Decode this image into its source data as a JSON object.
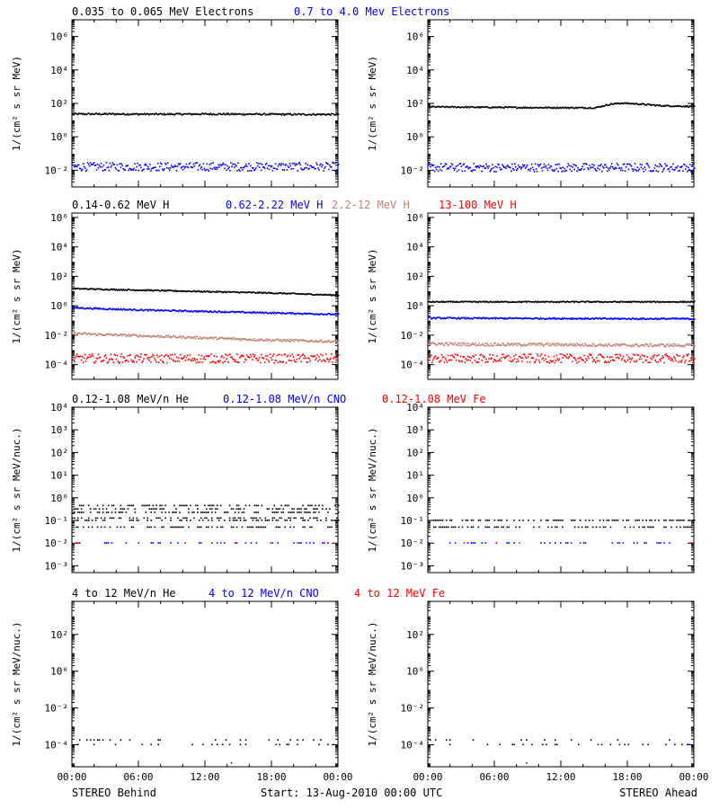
{
  "figure": {
    "footer_left": "STEREO Behind",
    "footer_center": "Start: 13-Aug-2010 00:00 UTC",
    "footer_right": "STEREO Ahead",
    "x_ticks": [
      "00:00",
      "06:00",
      "12:00",
      "18:00",
      "00:00"
    ]
  },
  "colors": {
    "black": "#000000",
    "blue": "#0000ff",
    "brown": "#c08070",
    "red": "#ff0000"
  },
  "chart_data": [
    {
      "type": "scatter",
      "panel": "electrons-behind",
      "row": 0,
      "col": 0,
      "title_items": [
        {
          "text": "0.035 to 0.065 MeV Electrons",
          "color": "#000000"
        },
        {
          "text": "0.7 to 4.0 Mev Electrons",
          "color": "#0000ff"
        }
      ],
      "ylabel": "1/(cm² s sr MeV)",
      "log_ymin": -3,
      "log_ymax": 7,
      "yticks": [
        {
          "exp": -2,
          "label": "10⁻²"
        },
        {
          "exp": 0,
          "label": "10⁰"
        },
        {
          "exp": 2,
          "label": "10²"
        },
        {
          "exp": 4,
          "label": "10⁴"
        },
        {
          "exp": 6,
          "label": "10⁶"
        }
      ],
      "xlim_hours": [
        0,
        24
      ],
      "series": [
        {
          "color": "#000000",
          "x": [
            0,
            4,
            8,
            12,
            16,
            20,
            24
          ],
          "log10_y": [
            1.35,
            1.35,
            1.34,
            1.35,
            1.34,
            1.33,
            1.33
          ],
          "scatter": 0.05
        },
        {
          "color": "#0000ff",
          "x": [
            0,
            4,
            8,
            12,
            16,
            20,
            24
          ],
          "log10_y": [
            -1.8,
            -1.8,
            -1.8,
            -1.8,
            -1.8,
            -1.8,
            -1.8
          ],
          "scatter": 0.25
        }
      ]
    },
    {
      "type": "scatter",
      "panel": "electrons-ahead",
      "row": 0,
      "col": 1,
      "title_items": [],
      "ylabel": "1/(cm² s sr MeV)",
      "log_ymin": -3,
      "log_ymax": 7,
      "yticks": [
        {
          "exp": -2,
          "label": "10⁻²"
        },
        {
          "exp": 0,
          "label": "10⁰"
        },
        {
          "exp": 2,
          "label": "10²"
        },
        {
          "exp": 4,
          "label": "10⁴"
        },
        {
          "exp": 6,
          "label": "10⁶"
        }
      ],
      "xlim_hours": [
        0,
        24
      ],
      "series": [
        {
          "color": "#000000",
          "x": [
            0,
            4,
            8,
            12,
            15,
            16.5,
            17.5,
            19,
            21,
            24
          ],
          "log10_y": [
            1.78,
            1.76,
            1.74,
            1.73,
            1.72,
            1.95,
            2.0,
            1.95,
            1.85,
            1.8
          ],
          "scatter": 0.04
        },
        {
          "color": "#0000ff",
          "x": [
            0,
            4,
            8,
            12,
            16,
            20,
            24
          ],
          "log10_y": [
            -1.85,
            -1.85,
            -1.85,
            -1.85,
            -1.85,
            -1.85,
            -1.85
          ],
          "scatter": 0.25
        }
      ]
    },
    {
      "type": "scatter",
      "panel": "protons-behind",
      "row": 1,
      "col": 0,
      "title_items": [
        {
          "text": "0.14-0.62 MeV H",
          "color": "#000000"
        },
        {
          "text": "0.62-2.22 MeV H",
          "color": "#0000ff"
        },
        {
          "text": "2.2-12 MeV H",
          "color": "#c08070"
        },
        {
          "text": "13-100 MeV H",
          "color": "#ff0000"
        }
      ],
      "ylabel": "1/(cm² s sr MeV)",
      "log_ymin": -5,
      "log_ymax": 6.3,
      "yticks": [
        {
          "exp": -4,
          "label": "10⁻⁴"
        },
        {
          "exp": -2,
          "label": "10⁻²"
        },
        {
          "exp": 0,
          "label": "10⁰"
        },
        {
          "exp": 2,
          "label": "10²"
        },
        {
          "exp": 4,
          "label": "10⁴"
        },
        {
          "exp": 6,
          "label": "10⁶"
        }
      ],
      "xlim_hours": [
        0,
        24
      ],
      "series": [
        {
          "color": "#000000",
          "x": [
            0,
            6,
            12,
            18,
            24
          ],
          "log10_y": [
            1.15,
            1.05,
            0.95,
            0.85,
            0.7
          ],
          "scatter": 0.04
        },
        {
          "color": "#0000ff",
          "x": [
            0,
            6,
            12,
            18,
            24
          ],
          "log10_y": [
            -0.15,
            -0.3,
            -0.4,
            -0.5,
            -0.6
          ],
          "scatter": 0.05
        },
        {
          "color": "#c08070",
          "x": [
            0,
            6,
            12,
            18,
            24
          ],
          "log10_y": [
            -1.9,
            -2.05,
            -2.2,
            -2.35,
            -2.45
          ],
          "scatter": 0.08
        },
        {
          "color": "#ff0000",
          "x": [
            0,
            6,
            12,
            18,
            24
          ],
          "log10_y": [
            -3.6,
            -3.6,
            -3.6,
            -3.6,
            -3.6
          ],
          "scatter": 0.3
        }
      ]
    },
    {
      "type": "scatter",
      "panel": "protons-ahead",
      "row": 1,
      "col": 1,
      "title_items": [],
      "ylabel": "1/(cm² s sr MeV)",
      "log_ymin": -5,
      "log_ymax": 6.3,
      "yticks": [
        {
          "exp": -4,
          "label": "10⁻⁴"
        },
        {
          "exp": -2,
          "label": "10⁻²"
        },
        {
          "exp": 0,
          "label": "10⁰"
        },
        {
          "exp": 2,
          "label": "10²"
        },
        {
          "exp": 4,
          "label": "10⁴"
        },
        {
          "exp": 6,
          "label": "10⁶"
        }
      ],
      "xlim_hours": [
        0,
        24
      ],
      "series": [
        {
          "color": "#000000",
          "x": [
            0,
            6,
            12,
            18,
            24
          ],
          "log10_y": [
            0.25,
            0.25,
            0.25,
            0.25,
            0.25
          ],
          "scatter": 0.04
        },
        {
          "color": "#0000ff",
          "x": [
            0,
            6,
            12,
            18,
            24
          ],
          "log10_y": [
            -0.85,
            -0.87,
            -0.88,
            -0.9,
            -0.9
          ],
          "scatter": 0.05
        },
        {
          "color": "#c08070",
          "x": [
            0,
            6,
            12,
            18,
            24
          ],
          "log10_y": [
            -2.6,
            -2.65,
            -2.65,
            -2.7,
            -2.7
          ],
          "scatter": 0.1
        },
        {
          "color": "#ff0000",
          "x": [
            0,
            6,
            12,
            18,
            24
          ],
          "log10_y": [
            -3.6,
            -3.6,
            -3.6,
            -3.6,
            -3.6
          ],
          "scatter": 0.3
        }
      ]
    },
    {
      "type": "scatter",
      "panel": "heavy-low-behind",
      "row": 2,
      "col": 0,
      "title_items": [
        {
          "text": "0.12-1.08 MeV/n He",
          "color": "#000000"
        },
        {
          "text": "0.12-1.08 MeV/n CNO",
          "color": "#0000ff"
        },
        {
          "text": "0.12-1.08 MeV Fe",
          "color": "#ff0000"
        }
      ],
      "ylabel": "1/(cm² s sr MeV/nuc.)",
      "log_ymin": -3.3,
      "log_ymax": 4,
      "yticks": [
        {
          "exp": -3,
          "label": "10⁻³"
        },
        {
          "exp": -2,
          "label": "10⁻²"
        },
        {
          "exp": -1,
          "label": "10⁻¹"
        },
        {
          "exp": 0,
          "label": "10⁰"
        },
        {
          "exp": 1,
          "label": "10¹"
        },
        {
          "exp": 2,
          "label": "10²"
        },
        {
          "exp": 3,
          "label": "10³"
        },
        {
          "exp": 4,
          "label": "10⁴"
        }
      ],
      "xlim_hours": [
        0,
        24
      ],
      "series": [
        {
          "color": "#000000",
          "levels": [
            -1.0,
            -0.65,
            -0.5,
            -0.35,
            -1.3,
            -0.9
          ],
          "density": 0.4
        },
        {
          "color": "#0000ff",
          "levels": [
            -2.0
          ],
          "density": 0.25
        },
        {
          "color": "#ff0000",
          "levels": [
            -2.0
          ],
          "density": 0.03
        }
      ]
    },
    {
      "type": "scatter",
      "panel": "heavy-low-ahead",
      "row": 2,
      "col": 1,
      "title_items": [],
      "ylabel": "1/(cm² s sr MeV/nuc.)",
      "log_ymin": -3.3,
      "log_ymax": 4,
      "yticks": [
        {
          "exp": -3,
          "label": "10⁻³"
        },
        {
          "exp": -2,
          "label": "10⁻²"
        },
        {
          "exp": -1,
          "label": "10⁻¹"
        },
        {
          "exp": 0,
          "label": "10⁰"
        },
        {
          "exp": 1,
          "label": "10¹"
        },
        {
          "exp": 2,
          "label": "10²"
        },
        {
          "exp": 3,
          "label": "10³"
        },
        {
          "exp": 4,
          "label": "10⁴"
        }
      ],
      "xlim_hours": [
        0,
        24
      ],
      "series": [
        {
          "color": "#000000",
          "levels": [
            -1.3,
            -1.0
          ],
          "density": 0.5
        },
        {
          "color": "#0000ff",
          "levels": [
            -2.0
          ],
          "density": 0.22
        },
        {
          "color": "#ff0000",
          "levels": [
            -2.0
          ],
          "density": 0.03
        }
      ]
    },
    {
      "type": "scatter",
      "panel": "heavy-high-behind",
      "row": 3,
      "col": 0,
      "title_items": [
        {
          "text": "4 to 12 MeV/n He",
          "color": "#000000"
        },
        {
          "text": "4 to 12 MeV/n CNO",
          "color": "#0000ff"
        },
        {
          "text": "4 to 12 MeV Fe",
          "color": "#ff0000"
        }
      ],
      "ylabel": "1/(cm² s sr MeV/nuc.)",
      "log_ymin": -5.2,
      "log_ymax": 3.8,
      "yticks": [
        {
          "exp": -4,
          "label": "10⁻⁴"
        },
        {
          "exp": -2,
          "label": "10⁻²"
        },
        {
          "exp": 0,
          "label": "10⁰"
        },
        {
          "exp": 2,
          "label": "10²"
        }
      ],
      "xlim_hours": [
        0,
        24
      ],
      "series": [
        {
          "color": "#000000",
          "levels": [
            -4.0,
            -3.75
          ],
          "density": 0.12
        },
        {
          "color": "#0000ff",
          "levels": [
            -5.0
          ],
          "density": 0.01
        }
      ]
    },
    {
      "type": "scatter",
      "panel": "heavy-high-ahead",
      "row": 3,
      "col": 1,
      "title_items": [],
      "ylabel": "1/(cm² s sr MeV/nuc.)",
      "log_ymin": -5.2,
      "log_ymax": 3.8,
      "yticks": [
        {
          "exp": -4,
          "label": "10⁻⁴"
        },
        {
          "exp": -2,
          "label": "10⁻²"
        },
        {
          "exp": 0,
          "label": "10⁰"
        },
        {
          "exp": 2,
          "label": "10²"
        }
      ],
      "xlim_hours": [
        0,
        24
      ],
      "series": [
        {
          "color": "#000000",
          "levels": [
            -4.0,
            -3.75
          ],
          "density": 0.1
        },
        {
          "color": "#0000ff",
          "levels": [
            -4.0,
            -5.0
          ],
          "density": 0.02
        }
      ]
    }
  ]
}
